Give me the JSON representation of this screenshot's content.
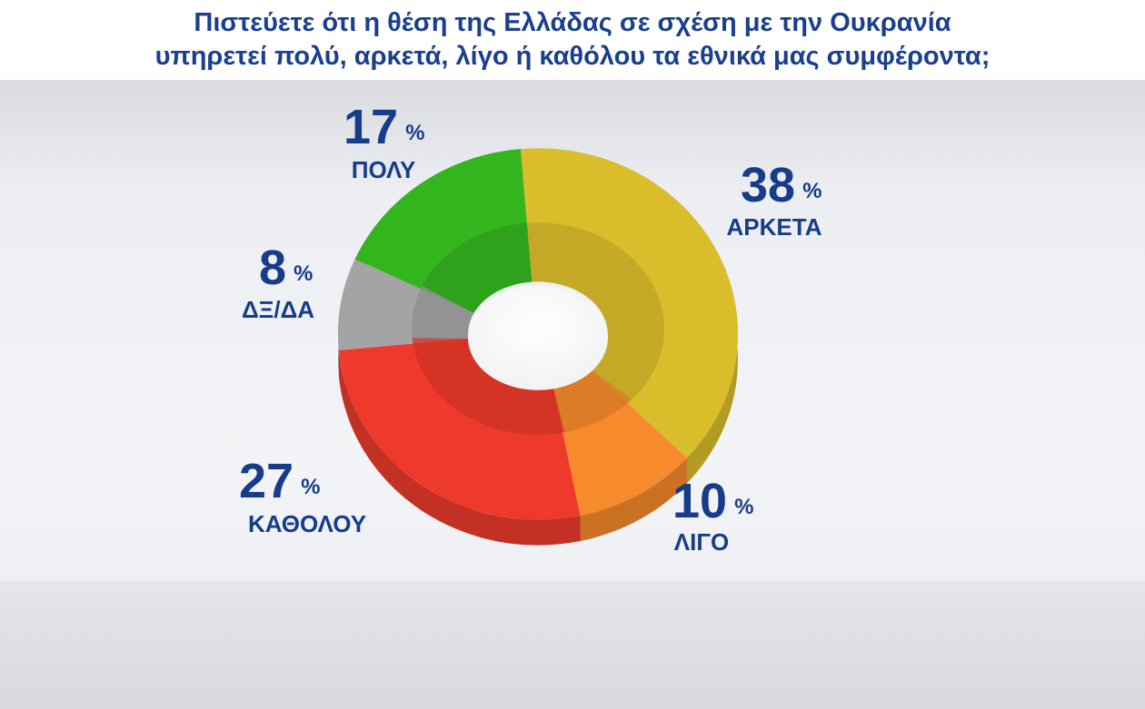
{
  "header": {
    "title_line1": "Πιστεύετε ότι η θέση της Ελλάδας σε σχέση με την Ουκρανία",
    "title_line2": "υπηρετεί πολύ, αρκετά, λίγο ή καθόλου τα εθνικά μας συμφέροντα;"
  },
  "chart_data": {
    "type": "pie",
    "title": "Πιστεύετε ότι η θέση της Ελλάδας σε σχέση με την Ουκρανία υπηρετεί πολύ, αρκετά, λίγο ή καθόλου τα εθνικά μας συμφέροντα;",
    "unit": "%",
    "slices": [
      {
        "label": "ΑΡΚΕΤΑ",
        "value": 38,
        "value_text": "38",
        "color": "#d9bd2a"
      },
      {
        "label": "ΛΙΓΟ",
        "value": 10,
        "value_text": "10",
        "color": "#f78a2c"
      },
      {
        "label": "ΚΑΘΟΛΟΥ",
        "value": 27,
        "value_text": "27",
        "color": "#ee3a2c"
      },
      {
        "label": "ΔΞ/ΔΑ",
        "value": 8,
        "value_text": "8",
        "color": "#a4a4a6"
      },
      {
        "label": "ΠΟΛΥ",
        "value": 17,
        "value_text": "17",
        "color": "#33b51e"
      }
    ]
  }
}
